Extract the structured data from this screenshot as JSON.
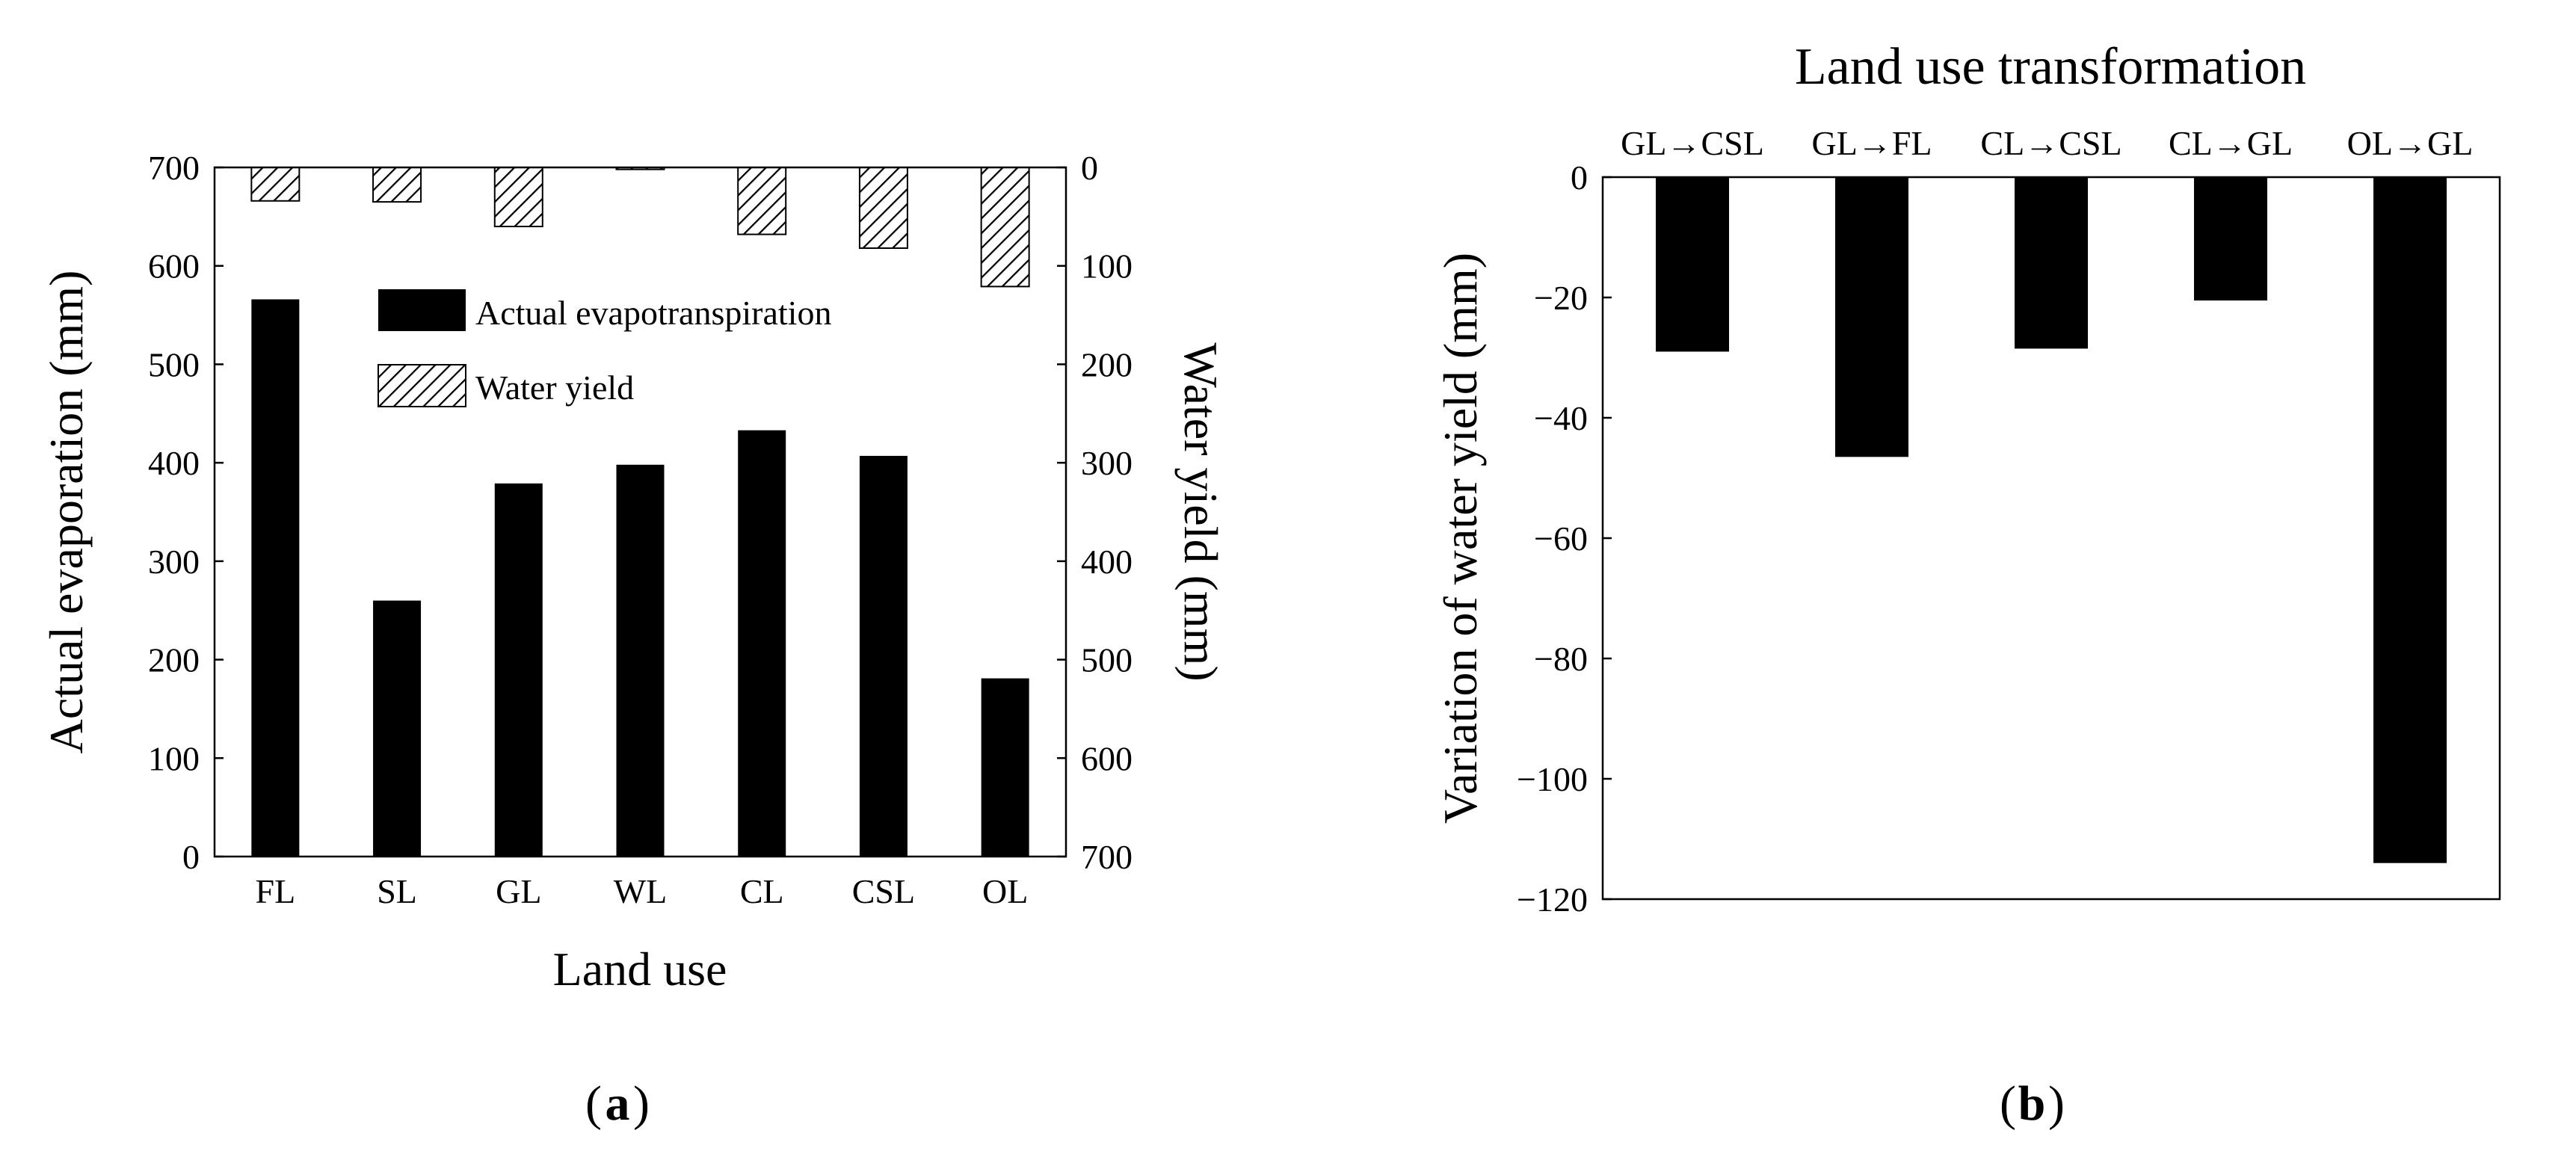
{
  "chart_data": [
    {
      "id": "a",
      "panel_label": "a",
      "type": "bar",
      "title": "",
      "xlabel": "Land use",
      "ylabel_left": "Actual evaporation (mm)",
      "ylabel_right": "Water yield (mm)",
      "categories": [
        "FL",
        "SL",
        "GL",
        "WL",
        "CL",
        "CSL",
        "OL"
      ],
      "ylim_left": [
        0,
        700
      ],
      "yticks_left": [
        0,
        100,
        200,
        300,
        400,
        500,
        600,
        700
      ],
      "ylim_right": [
        0,
        700
      ],
      "right_axis_inverted": true,
      "yticks_right": [
        0,
        100,
        200,
        300,
        400,
        500,
        600,
        700
      ],
      "series": [
        {
          "name": "Actual evapotranspiration",
          "axis": "left",
          "style": "solid",
          "color": "#000000",
          "values": [
            566,
            260,
            379,
            398,
            433,
            407,
            181
          ]
        },
        {
          "name": "Water yield",
          "axis": "right",
          "style": "hatched",
          "color": "#000000",
          "values": [
            34,
            35,
            60,
            2,
            68,
            82,
            121
          ]
        }
      ],
      "legend": [
        "Actual evapotranspiration",
        "Water yield"
      ],
      "legend_position": "upper-center",
      "grid": false
    },
    {
      "id": "b",
      "panel_label": "b",
      "type": "bar",
      "title": "Land use transformation",
      "xlabel": "",
      "ylabel": "Variation of water yield (mm)",
      "categories": [
        "GL→CSL",
        "GL→FL",
        "CL→CSL",
        "CL→GL",
        "OL→GL"
      ],
      "values": [
        -29,
        -46.5,
        -28.5,
        -20.5,
        -114
      ],
      "ylim": [
        -120,
        0
      ],
      "yticks": [
        0,
        -20,
        -40,
        -60,
        -80,
        -100,
        -120
      ],
      "xaxis_position": "top",
      "grid": false
    }
  ]
}
